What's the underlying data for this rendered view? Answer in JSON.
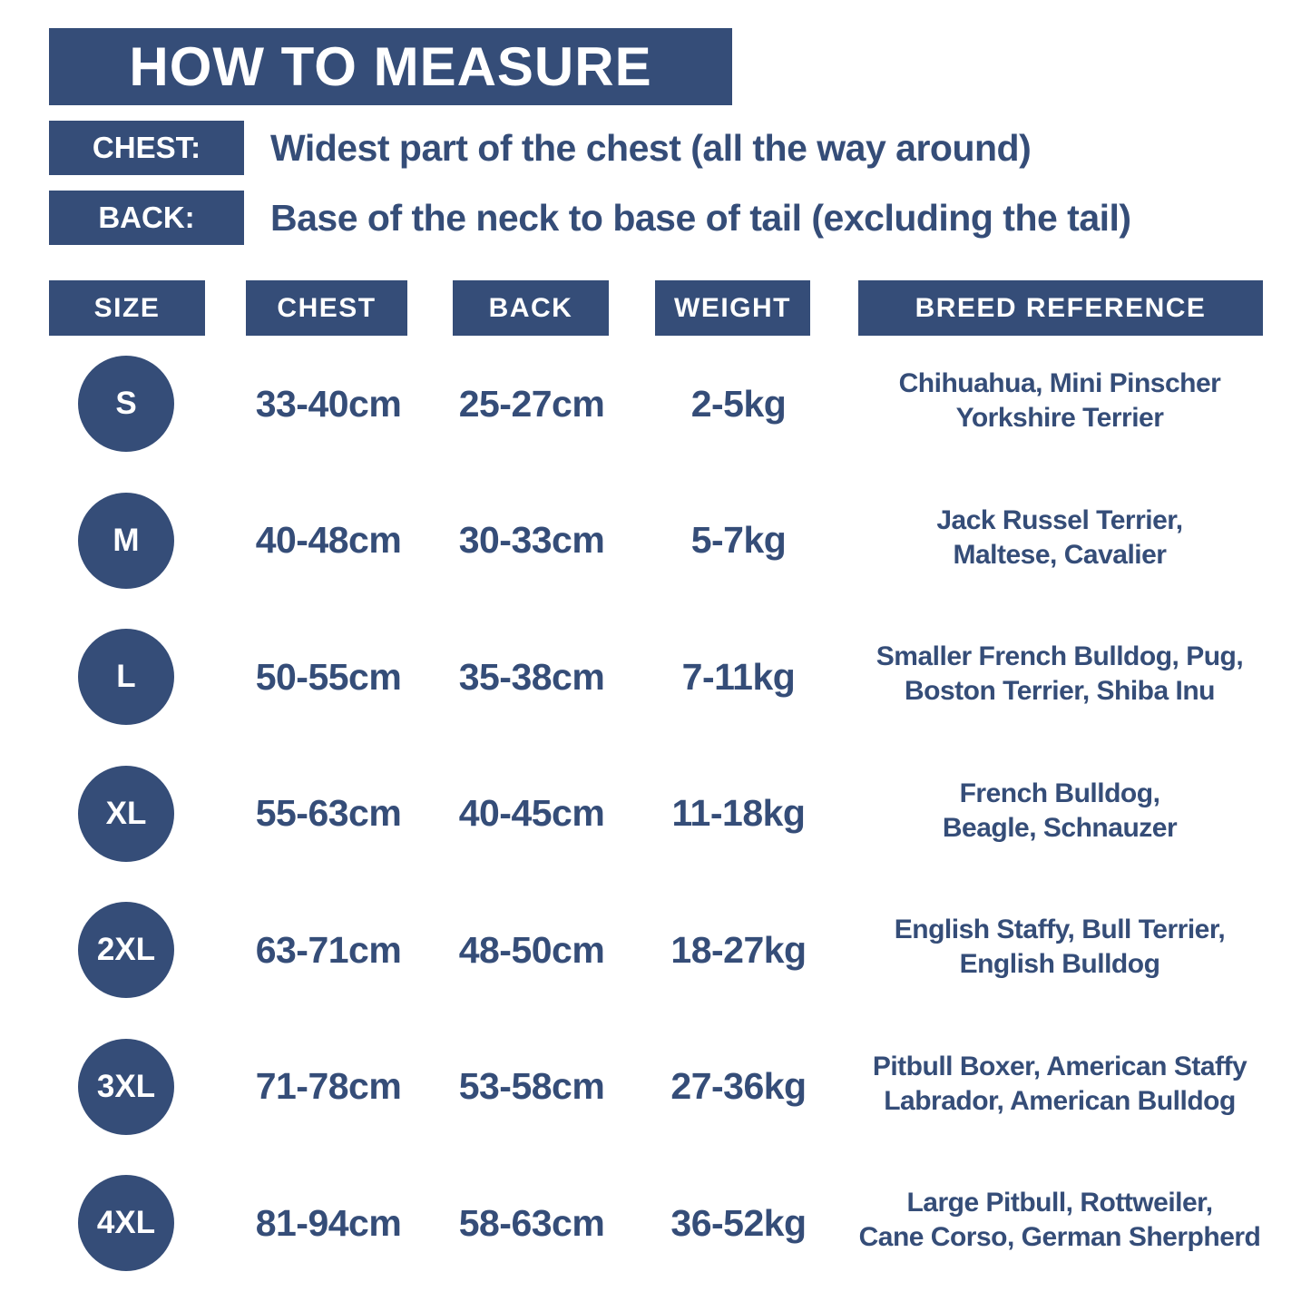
{
  "title": "HOW TO MEASURE",
  "guide": [
    {
      "label": "CHEST:",
      "text": "Widest part of the chest (all the way around)"
    },
    {
      "label": "BACK:",
      "text": "Base of the neck to base of tail (excluding the tail)"
    }
  ],
  "headers": [
    "SIZE",
    "CHEST",
    "BACK",
    "WEIGHT",
    "BREED REFERENCE"
  ],
  "rows": [
    {
      "size": "S",
      "chest": "33-40cm",
      "back": "25-27cm",
      "weight": "2-5kg",
      "breed": [
        "Chihuahua, Mini Pinscher",
        "Yorkshire Terrier"
      ]
    },
    {
      "size": "M",
      "chest": "40-48cm",
      "back": "30-33cm",
      "weight": "5-7kg",
      "breed": [
        "Jack Russel Terrier,",
        "Maltese, Cavalier"
      ]
    },
    {
      "size": "L",
      "chest": "50-55cm",
      "back": "35-38cm",
      "weight": "7-11kg",
      "breed": [
        "Smaller French Bulldog, Pug,",
        "Boston Terrier, Shiba Inu"
      ]
    },
    {
      "size": "XL",
      "chest": "55-63cm",
      "back": "40-45cm",
      "weight": "11-18kg",
      "breed": [
        "French Bulldog,",
        "Beagle, Schnauzer"
      ]
    },
    {
      "size": "2XL",
      "chest": "63-71cm",
      "back": "48-50cm",
      "weight": "18-27kg",
      "breed": [
        "English Staffy, Bull Terrier,",
        "English Bulldog"
      ]
    },
    {
      "size": "3XL",
      "chest": "71-78cm",
      "back": "53-58cm",
      "weight": "27-36kg",
      "breed": [
        "Pitbull Boxer, American Staffy",
        "Labrador, American Bulldog"
      ]
    },
    {
      "size": "4XL",
      "chest": "81-94cm",
      "back": "58-63cm",
      "weight": "36-52kg",
      "breed": [
        "Large Pitbull, Rottweiler,",
        "Cane Corso, German Sherpherd"
      ]
    }
  ],
  "colors": {
    "accent": "#354d78",
    "background": "#ffffff"
  }
}
